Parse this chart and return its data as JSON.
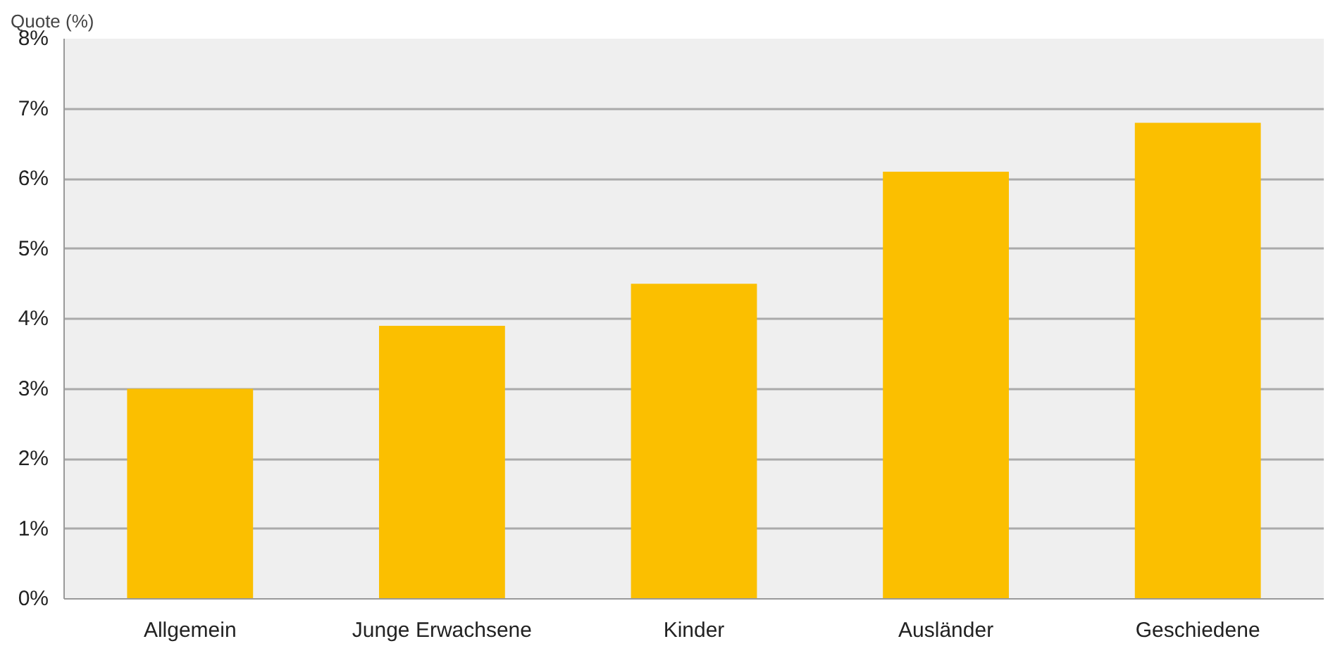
{
  "chart_data": {
    "type": "bar",
    "ylabel": "Quote (%)",
    "categories": [
      "Allgemein",
      "Junge Erwachsene",
      "Kinder",
      "Ausländer",
      "Geschiedene"
    ],
    "values": [
      3.0,
      3.9,
      4.5,
      6.1,
      6.8
    ],
    "color": "#fbbf00",
    "ylim": [
      0,
      8
    ],
    "yticks": [
      {
        "value": 0,
        "label": "0%"
      },
      {
        "value": 1,
        "label": "1%"
      },
      {
        "value": 2,
        "label": "2%"
      },
      {
        "value": 3,
        "label": "3%"
      },
      {
        "value": 4,
        "label": "4%"
      },
      {
        "value": 5,
        "label": "5%"
      },
      {
        "value": 6,
        "label": "6%"
      },
      {
        "value": 7,
        "label": "7%"
      },
      {
        "value": 8,
        "label": "8%"
      }
    ],
    "grid": "y"
  }
}
